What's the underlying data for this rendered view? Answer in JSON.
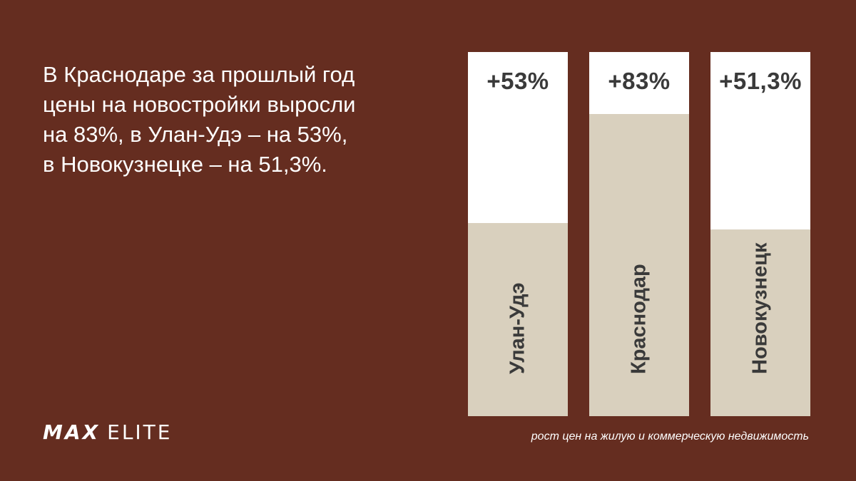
{
  "headline": {
    "lines": [
      "В Краснодаре за прошлый год",
      "цены на новостройки выросли",
      "на 83%, в Улан-Удэ – на 53%,",
      "в Новокузнецке – на 51,3%."
    ]
  },
  "chart_data": {
    "type": "bar",
    "title": "",
    "caption": "рост цен на жилую и коммерческую недвижимость",
    "categories": [
      "Улан-Удэ",
      "Краснодар",
      "Новокузнецк"
    ],
    "values": [
      53,
      83,
      51.3
    ],
    "value_labels": [
      "+53%",
      "+83%",
      "+51,3%"
    ],
    "ylim": [
      0,
      100
    ],
    "grid": false,
    "colors": {
      "fill": "#d9d0be",
      "track": "#ffffff",
      "background": "#652d20",
      "text": "#3a3a3a"
    }
  },
  "logo": {
    "text_first": "MAX",
    "text_second": "ELITE"
  }
}
